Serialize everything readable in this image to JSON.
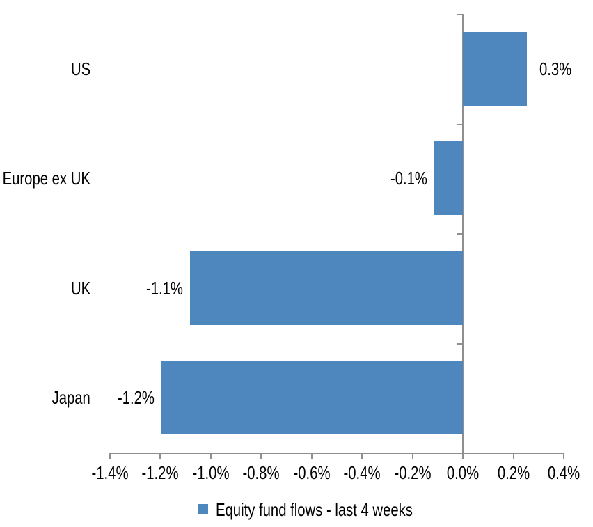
{
  "chart_data": {
    "type": "bar",
    "orientation": "horizontal",
    "title": "",
    "categories": [
      "US",
      "Europe ex UK",
      "UK",
      "Japan"
    ],
    "series": [
      {
        "name": "Equity fund flows - last 4 weeks",
        "values": [
          0.3,
          -0.1,
          -1.1,
          -1.2
        ],
        "values_plotted": [
          0.253,
          -0.113,
          -1.081,
          -1.194
        ],
        "data_labels": [
          "0.3%",
          "-0.1%",
          "-1.1%",
          "-1.2%"
        ]
      }
    ],
    "xlabel": "",
    "ylabel": "",
    "xlim": [
      -1.4,
      0.4
    ],
    "x_tick_step": 0.2,
    "x_tick_labels": [
      "-1.4%",
      "-1.2%",
      "-1.0%",
      "-0.8%",
      "-0.6%",
      "-0.4%",
      "-0.2%",
      "0.0%",
      "0.2%",
      "0.4%"
    ],
    "grid": false,
    "legend_position": "bottom",
    "colors": {
      "bar": "#4E86BE",
      "axis": "#8F8F8F",
      "text": "#000000",
      "background": "#FFFFFF"
    }
  },
  "legend": {
    "label": "Equity fund flows - last 4 weeks",
    "swatch_color": "#4E86BE"
  }
}
